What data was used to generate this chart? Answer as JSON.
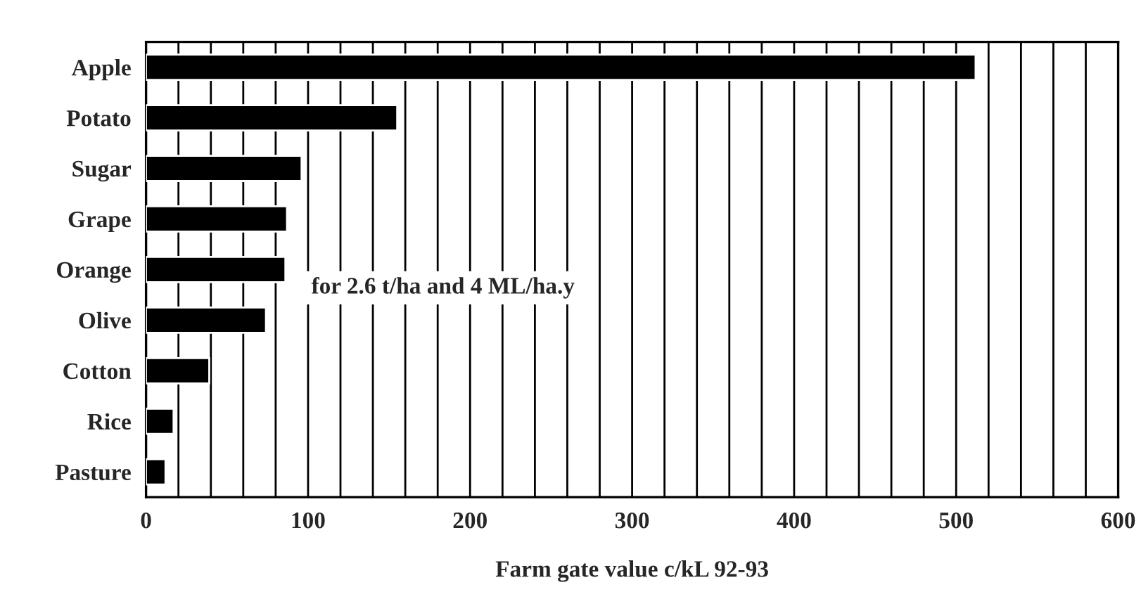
{
  "chart_data": {
    "type": "bar",
    "orientation": "horizontal",
    "categories": [
      "Apple",
      "Potato",
      "Sugar",
      "Grape",
      "Orange",
      "Olive",
      "Cotton",
      "Rice",
      "Pasture"
    ],
    "values": [
      512,
      155,
      96,
      87,
      86,
      74,
      39,
      17,
      12
    ],
    "color": "#000000",
    "xlabel": "Farm gate value c/kL 92-93",
    "xlim": [
      0,
      600
    ],
    "xticks": [
      0,
      {
        "value": 20,
        "label": null
      },
      {
        "value": 40,
        "label": null
      },
      {
        "value": 60,
        "label": null
      },
      {
        "value": 80,
        "label": null
      },
      100,
      {
        "value": 120,
        "label": null
      },
      {
        "value": 140,
        "label": null
      },
      {
        "value": 160,
        "label": null
      },
      {
        "value": 180,
        "label": null
      },
      200,
      {
        "value": 220,
        "label": null
      },
      {
        "value": 240,
        "label": null
      },
      {
        "value": 260,
        "label": null
      },
      {
        "value": 280,
        "label": null
      },
      300,
      {
        "value": 320,
        "label": null
      },
      {
        "value": 340,
        "label": null
      },
      {
        "value": 360,
        "label": null
      },
      {
        "value": 380,
        "label": null
      },
      400,
      {
        "value": 420,
        "label": null
      },
      {
        "value": 440,
        "label": null
      },
      {
        "value": 460,
        "label": null
      },
      {
        "value": 480,
        "label": null
      },
      500,
      {
        "value": 520,
        "label": null
      },
      {
        "value": 540,
        "label": null
      },
      {
        "value": 560,
        "label": null
      },
      {
        "value": 580,
        "label": null
      },
      600
    ],
    "grid": "x",
    "annotations": [
      "for 2.6 t/ha and 4 ML/ha.y"
    ]
  }
}
